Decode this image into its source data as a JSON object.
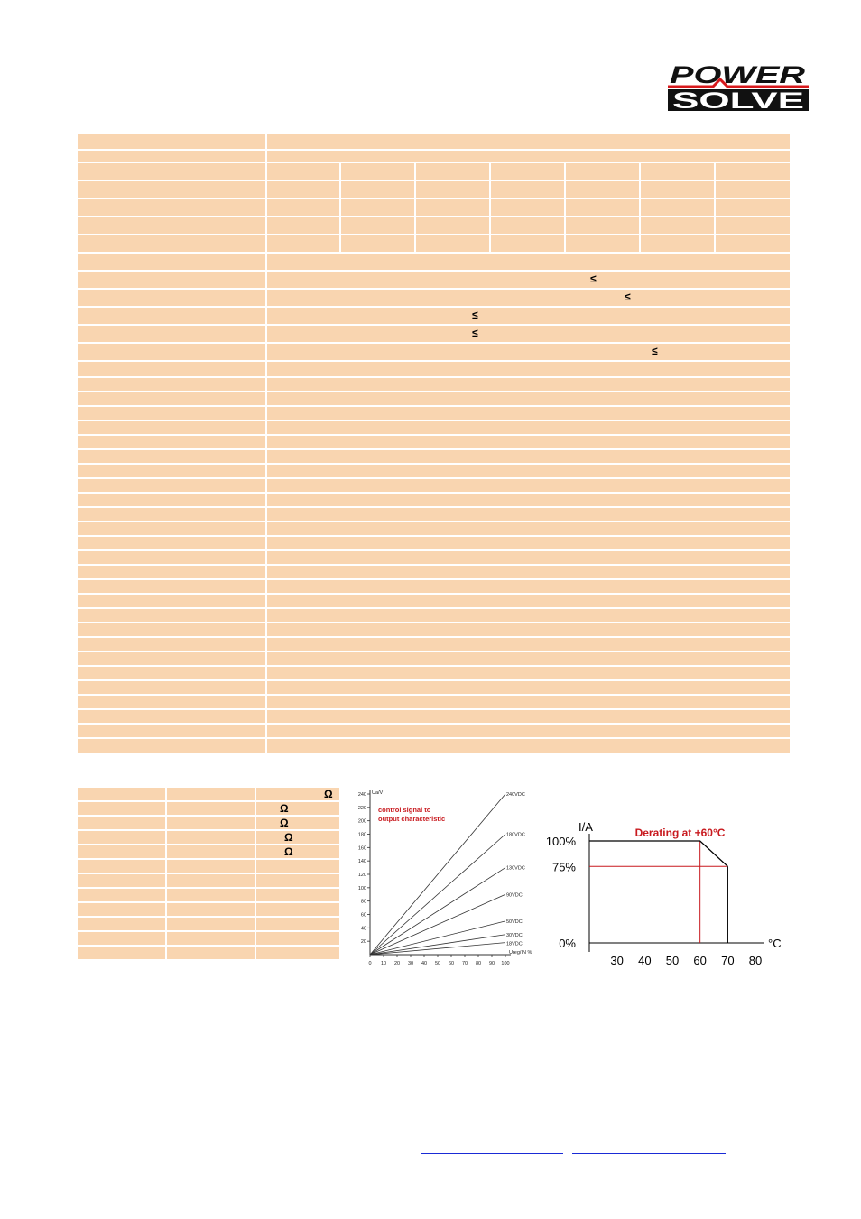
{
  "logo": {
    "line1": "POWER",
    "line2": "SOLVE",
    "text_color": "#111111",
    "accent_color": "#d7191c"
  },
  "spec_table": {
    "bg_color": "#f9d5b0"
  },
  "small_table": {
    "ohm_symbol": "Ω"
  },
  "symbols": {
    "leq": "≤"
  },
  "chart_control": {
    "chart_data": {
      "type": "line",
      "title": "control signal to\noutput characteristic",
      "title_line1": "control signal to",
      "title_line2": "output characteristic",
      "ylabel": "Ua/V",
      "xlabel": "Ureg/IN %",
      "xlim": [
        0,
        100
      ],
      "ylim": [
        0,
        240
      ],
      "x_ticks": [
        0,
        10,
        20,
        30,
        40,
        50,
        60,
        70,
        80,
        90,
        100
      ],
      "y_ticks": [
        20,
        40,
        60,
        80,
        100,
        120,
        140,
        160,
        180,
        200,
        220,
        240
      ],
      "series": [
        {
          "name": "240VDC",
          "values": [
            [
              0,
              0
            ],
            [
              100,
              240
            ]
          ]
        },
        {
          "name": "180VDC",
          "values": [
            [
              0,
              0
            ],
            [
              100,
              180
            ]
          ]
        },
        {
          "name": "130VDC",
          "values": [
            [
              0,
              0
            ],
            [
              100,
              130
            ]
          ]
        },
        {
          "name": "90VDC",
          "values": [
            [
              0,
              0
            ],
            [
              100,
              90
            ]
          ]
        },
        {
          "name": "50VDC",
          "values": [
            [
              0,
              0
            ],
            [
              100,
              50
            ]
          ]
        },
        {
          "name": "30VDC",
          "values": [
            [
              0,
              0
            ],
            [
              100,
              30
            ]
          ]
        },
        {
          "name": "18VDC",
          "values": [
            [
              0,
              0
            ],
            [
              100,
              18
            ]
          ]
        }
      ]
    }
  },
  "chart_derating": {
    "chart_data": {
      "type": "line",
      "title": "Derating at +60°C",
      "ylabel": "I/A",
      "xlabel": "°C",
      "x_ticks": [
        30,
        40,
        50,
        60,
        70,
        80
      ],
      "y_ticks": [
        "0%",
        "75%",
        "100%"
      ],
      "xlim": [
        20,
        80
      ],
      "ylim": [
        0,
        100
      ],
      "series": [
        {
          "name": "",
          "values": [
            [
              20,
              100
            ],
            [
              60,
              100
            ],
            [
              70,
              75
            ]
          ]
        }
      ],
      "title_color": "#c8191e",
      "marker_color": "#c8191e"
    }
  }
}
